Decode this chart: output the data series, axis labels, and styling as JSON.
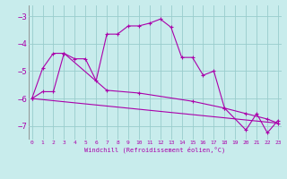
{
  "bg_color": "#c8ecec",
  "line_color": "#aa00aa",
  "grid_color": "#99cccc",
  "x_ticks": [
    0,
    1,
    2,
    3,
    4,
    5,
    6,
    7,
    8,
    9,
    10,
    11,
    12,
    13,
    14,
    15,
    16,
    17,
    18,
    19,
    20,
    21,
    22,
    23
  ],
  "y_ticks": [
    -3,
    -4,
    -5,
    -6,
    -7
  ],
  "ylim": [
    -7.5,
    -2.6
  ],
  "xlim": [
    -0.3,
    23.3
  ],
  "xlabel": "Windchill (Refroidissement éolien,°C)",
  "series1_x": [
    0,
    1,
    2,
    3,
    4,
    5,
    6,
    7,
    8,
    9,
    10,
    11,
    12,
    13,
    14,
    15,
    16,
    17,
    18,
    20,
    21,
    22,
    23
  ],
  "series1_y": [
    -6.0,
    -4.9,
    -4.35,
    -4.35,
    -4.55,
    -4.55,
    -5.35,
    -3.65,
    -3.65,
    -3.35,
    -3.35,
    -3.25,
    -3.1,
    -3.4,
    -4.5,
    -4.5,
    -5.15,
    -5.0,
    -6.35,
    -7.15,
    -6.55,
    -7.25,
    -6.8
  ],
  "series2_x": [
    0,
    1,
    2,
    3,
    7,
    10,
    15,
    18,
    20,
    22,
    23
  ],
  "series2_y": [
    -6.0,
    -5.75,
    -5.75,
    -4.35,
    -5.7,
    -5.8,
    -6.1,
    -6.35,
    -6.55,
    -6.75,
    -6.9
  ],
  "series3_x": [
    0,
    23
  ],
  "series3_y": [
    -6.0,
    -6.9
  ],
  "figsize": [
    3.2,
    2.0
  ],
  "dpi": 100
}
